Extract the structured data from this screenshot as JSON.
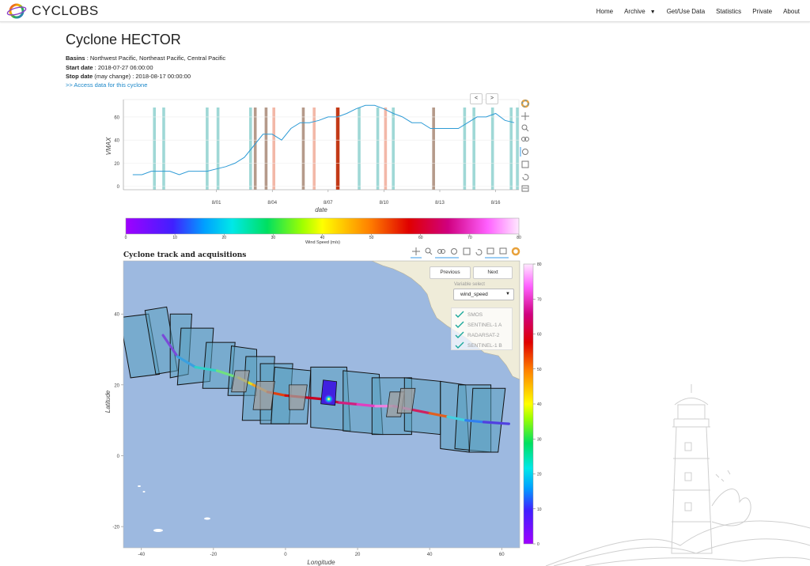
{
  "navbar": {
    "brand": "CYCLOBS",
    "items": [
      "Home",
      "Archive",
      "Get/Use Data",
      "Statistics",
      "Private",
      "About"
    ]
  },
  "page": {
    "title": "Cyclone HECTOR",
    "basins_label": "Basins",
    "basins_value": " : Northwest Pacific, Northeast Pacific, Central Pacific",
    "start_label": "Start date",
    "start_value": " : 2018-07-27 06:00:00",
    "stop_label": "Stop date",
    "stop_note": " (may change)",
    "stop_value": " : 2018-08-17 00:00:00",
    "access_link": ">> Access data for this cyclone"
  },
  "colors": {
    "line": "#2e9bd6",
    "acq_teal": "#9fd8d6",
    "acq_brown": "#b59a8a",
    "acq_salmon": "#f3b8a8",
    "acq_red": "#c33a17",
    "ocean": "#9db9e0",
    "land": "#efecd9",
    "swath": "#5aa0c0"
  },
  "chart_data": [
    {
      "type": "line",
      "title": "",
      "xlabel": "date",
      "ylabel": "VMAX",
      "ylim": [
        -3,
        75
      ],
      "yticks": [
        "0",
        "20",
        "40",
        "60"
      ],
      "xticks": [
        "8/01",
        "8/04",
        "8/07",
        "8/10",
        "8/13",
        "8/16"
      ],
      "x": [
        "07-27 12",
        "07-28 00",
        "07-28 12",
        "07-29 00",
        "07-29 12",
        "07-30 00",
        "07-30 12",
        "07-31 00",
        "07-31 12",
        "08-01 00",
        "08-01 12",
        "08-02 00",
        "08-02 12",
        "08-03 00",
        "08-03 12",
        "08-04 00",
        "08-04 12",
        "08-05 00",
        "08-05 12",
        "08-06 00",
        "08-06 12",
        "08-07 00",
        "08-07 12",
        "08-08 00",
        "08-08 12",
        "08-09 00",
        "08-09 12",
        "08-10 00",
        "08-10 12",
        "08-11 00",
        "08-11 12",
        "08-12 00",
        "08-12 12",
        "08-13 00",
        "08-13 12",
        "08-14 00",
        "08-14 12",
        "08-15 00",
        "08-15 12",
        "08-16 00",
        "08-16 12",
        "08-17 00"
      ],
      "series": [
        {
          "values": [
            10,
            10,
            13,
            13,
            13,
            10,
            13,
            13,
            13,
            15,
            17,
            20,
            25,
            35,
            45,
            45,
            40,
            50,
            55,
            55,
            57,
            60,
            60,
            63,
            67,
            70,
            70,
            67,
            63,
            60,
            55,
            55,
            50,
            50,
            50,
            50,
            55,
            60,
            60,
            63,
            57,
            55
          ]
        }
      ],
      "acquisitions": [
        {
          "date": "07-28 16",
          "kind": "teal"
        },
        {
          "date": "07-29 04",
          "kind": "teal"
        },
        {
          "date": "07-31 12",
          "kind": "teal"
        },
        {
          "date": "08-01 02",
          "kind": "teal"
        },
        {
          "date": "08-02 20",
          "kind": "teal"
        },
        {
          "date": "08-03 02",
          "kind": "brown"
        },
        {
          "date": "08-03 16",
          "kind": "brown"
        },
        {
          "date": "08-04 02",
          "kind": "salmon"
        },
        {
          "date": "08-05 16",
          "kind": "brown"
        },
        {
          "date": "08-06 06",
          "kind": "salmon"
        },
        {
          "date": "08-07 12",
          "kind": "red"
        },
        {
          "date": "08-08 16",
          "kind": "teal"
        },
        {
          "date": "08-09 16",
          "kind": "teal"
        },
        {
          "date": "08-10 02",
          "kind": "salmon"
        },
        {
          "date": "08-10 12",
          "kind": "teal"
        },
        {
          "date": "08-12 16",
          "kind": "brown"
        },
        {
          "date": "08-14 08",
          "kind": "teal"
        },
        {
          "date": "08-14 20",
          "kind": "teal"
        },
        {
          "date": "08-15 20",
          "kind": "teal"
        },
        {
          "date": "08-16 20",
          "kind": "teal"
        },
        {
          "date": "08-17 04",
          "kind": "teal"
        }
      ]
    },
    {
      "type": "colorbar",
      "label": "Wind Speed (m/s)",
      "range": [
        0,
        80
      ],
      "ticks": [
        "0",
        "10",
        "20",
        "30",
        "40",
        "50",
        "60",
        "70",
        "80"
      ]
    },
    {
      "type": "map",
      "title": "Cyclone track and acquisitions",
      "xlabel": "Longitude",
      "ylabel": "Latitude",
      "xlim": [
        -45,
        65
      ],
      "ylim": [
        -26,
        55
      ],
      "xticks": [
        "-40",
        "-20",
        "0",
        "20",
        "40",
        "60"
      ],
      "yticks": [
        "-20",
        "0",
        "20",
        "40"
      ],
      "colorbar_ticks": [
        "0",
        "10",
        "20",
        "30",
        "40",
        "50",
        "60",
        "70",
        "80"
      ],
      "track": [
        [
          -34,
          34
        ],
        [
          -30,
          28
        ],
        [
          -25,
          25
        ],
        [
          -19,
          24
        ],
        [
          -13,
          22
        ],
        [
          -9,
          20
        ],
        [
          -5,
          18
        ],
        [
          0,
          17
        ],
        [
          5,
          16.5
        ],
        [
          10,
          16
        ],
        [
          15,
          15
        ],
        [
          20,
          14.5
        ],
        [
          25,
          14
        ],
        [
          30,
          14
        ],
        [
          35,
          13
        ],
        [
          40,
          12
        ],
        [
          45,
          11
        ],
        [
          50,
          10
        ],
        [
          55,
          9.5
        ],
        [
          62,
          9
        ]
      ],
      "swaths": [
        [
          [
            -46,
            39
          ],
          [
            -38,
            40
          ],
          [
            -35,
            23
          ],
          [
            -43,
            22
          ]
        ],
        [
          [
            -39,
            41
          ],
          [
            -33,
            42
          ],
          [
            -30,
            24
          ],
          [
            -36,
            23
          ]
        ],
        [
          [
            -32,
            40
          ],
          [
            -26,
            40
          ],
          [
            -27,
            23
          ],
          [
            -32,
            22
          ]
        ],
        [
          [
            -29,
            36
          ],
          [
            -20,
            36
          ],
          [
            -21,
            21
          ],
          [
            -30,
            20
          ]
        ],
        [
          [
            -22,
            32
          ],
          [
            -14,
            32
          ],
          [
            -15,
            19
          ],
          [
            -23,
            19
          ]
        ],
        [
          [
            -15,
            31
          ],
          [
            -8,
            30
          ],
          [
            -8,
            17
          ],
          [
            -16,
            17
          ]
        ],
        [
          [
            -11,
            28
          ],
          [
            -3,
            28
          ],
          [
            -4,
            10
          ],
          [
            -12,
            10
          ]
        ],
        [
          [
            -7,
            26
          ],
          [
            2,
            26
          ],
          [
            1,
            9
          ],
          [
            -7,
            9
          ]
        ],
        [
          [
            -3,
            25
          ],
          [
            7,
            24
          ],
          [
            6,
            9
          ],
          [
            -4,
            9
          ]
        ],
        [
          [
            7,
            25
          ],
          [
            17,
            25
          ],
          [
            18,
            7
          ],
          [
            7,
            8
          ]
        ],
        [
          [
            16,
            24
          ],
          [
            26,
            23
          ],
          [
            27,
            6
          ],
          [
            16,
            7
          ]
        ],
        [
          [
            24,
            22
          ],
          [
            35,
            22
          ],
          [
            35,
            6
          ],
          [
            24,
            6
          ]
        ],
        [
          [
            33,
            22
          ],
          [
            43,
            21
          ],
          [
            43,
            6
          ],
          [
            33,
            7
          ]
        ],
        [
          [
            43,
            21
          ],
          [
            50,
            20
          ],
          [
            51,
            1
          ],
          [
            43,
            2
          ]
        ],
        [
          [
            48,
            20
          ],
          [
            57,
            20
          ],
          [
            57,
            1
          ],
          [
            47,
            2
          ]
        ],
        [
          [
            52,
            19
          ],
          [
            61,
            19
          ],
          [
            59,
            1
          ],
          [
            51,
            1
          ]
        ]
      ],
      "sar_patches": [
        [
          [
            -14,
            24
          ],
          [
            -10,
            24
          ],
          [
            -11,
            18
          ],
          [
            -15,
            18
          ]
        ],
        [
          [
            -8,
            21
          ],
          [
            -3,
            21
          ],
          [
            -4,
            13
          ],
          [
            -9,
            13
          ]
        ],
        [
          [
            1,
            20
          ],
          [
            6,
            20
          ],
          [
            5,
            13
          ],
          [
            1,
            13
          ]
        ],
        [
          [
            29,
            18
          ],
          [
            33,
            18
          ],
          [
            32,
            11
          ],
          [
            28,
            11
          ]
        ],
        [
          [
            32,
            19
          ],
          [
            36,
            19
          ],
          [
            35,
            12
          ],
          [
            31,
            12
          ]
        ]
      ],
      "eye": [
        12,
        16
      ],
      "buttons": {
        "previous": "Previous",
        "next": "Next"
      },
      "variable_select": {
        "label": "Variable select",
        "value": "wind_speed"
      },
      "legend": [
        "SMOS",
        "SENTINEL-1 A",
        "RADARSAT-2",
        "SENTINEL-1 B"
      ]
    }
  ]
}
